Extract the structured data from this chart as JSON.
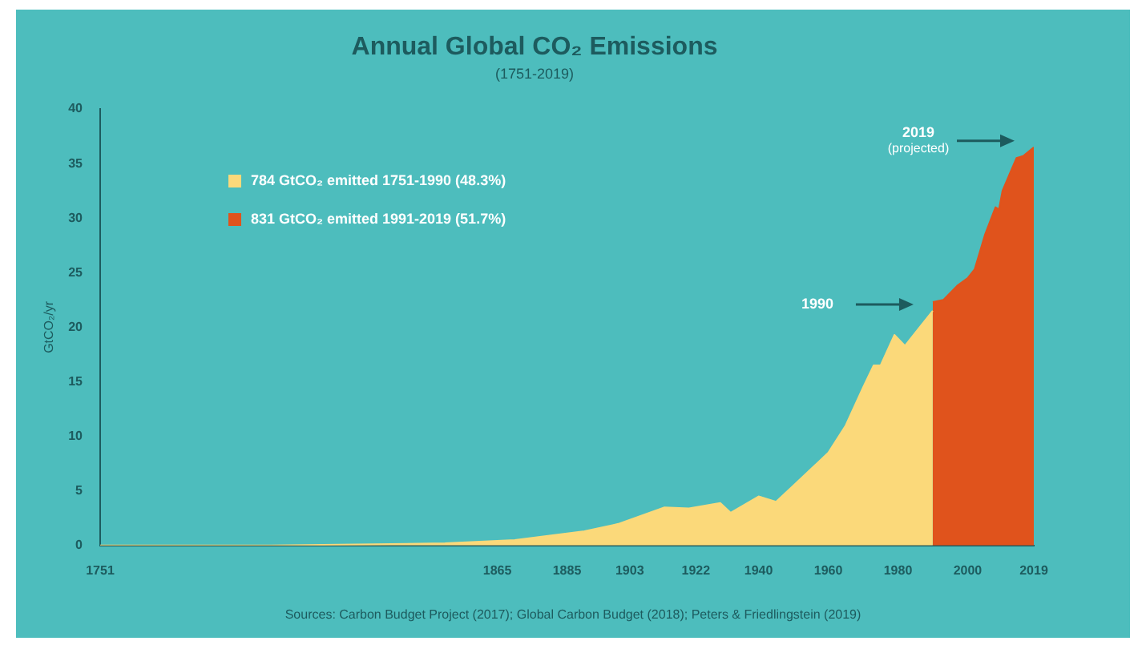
{
  "chart_data": {
    "type": "area",
    "title": "Annual Global CO₂ Emissions",
    "subtitle": "(1751-2019)",
    "ylabel": "GtCO₂/yr",
    "series": [
      {
        "name": "784 GtCO₂ emitted 1751-1990 (48.3%)",
        "color": "#fbd97a",
        "x": [
          1751,
          1800,
          1850,
          1870,
          1890,
          1900,
          1913,
          1920,
          1929,
          1932,
          1940,
          1945,
          1950,
          1960,
          1965,
          1970,
          1973,
          1975,
          1979,
          1982,
          1985,
          1990
        ],
        "values": [
          0,
          0,
          0.2,
          0.5,
          1.3,
          2,
          3.5,
          3.4,
          3.9,
          3,
          4.5,
          4,
          5.5,
          8.5,
          11,
          14.5,
          16.5,
          16.5,
          19.3,
          18.3,
          19.5,
          21.5
        ]
      },
      {
        "name": "831 GtCO₂ emitted 1991-2019 (51.7%)",
        "color": "#e0531c",
        "x": [
          1990,
          1993,
          1997,
          2000,
          2002,
          2005,
          2008,
          2009,
          2010,
          2012,
          2014,
          2016,
          2019
        ],
        "values": [
          22.3,
          22.5,
          23.8,
          24.5,
          25.3,
          28.5,
          31,
          30.8,
          32.5,
          34,
          35.5,
          35.7,
          36.5
        ]
      }
    ],
    "xlim": [
      1751,
      2019
    ],
    "xticks": [
      1751,
      1865,
      1885,
      1903,
      1922,
      1940,
      1960,
      1980,
      2000,
      2019
    ],
    "ylim": [
      0,
      40
    ],
    "yticks": [
      0,
      5,
      10,
      15,
      20,
      25,
      30,
      35,
      40
    ],
    "grid": false,
    "legend": "top left",
    "annotations": [
      "1990",
      "2019\n(projected)",
      "Sources: Carbon Budget Project (2017); Global Carbon Budget (2018); Peters & Friedlingstein (2019)"
    ]
  }
}
